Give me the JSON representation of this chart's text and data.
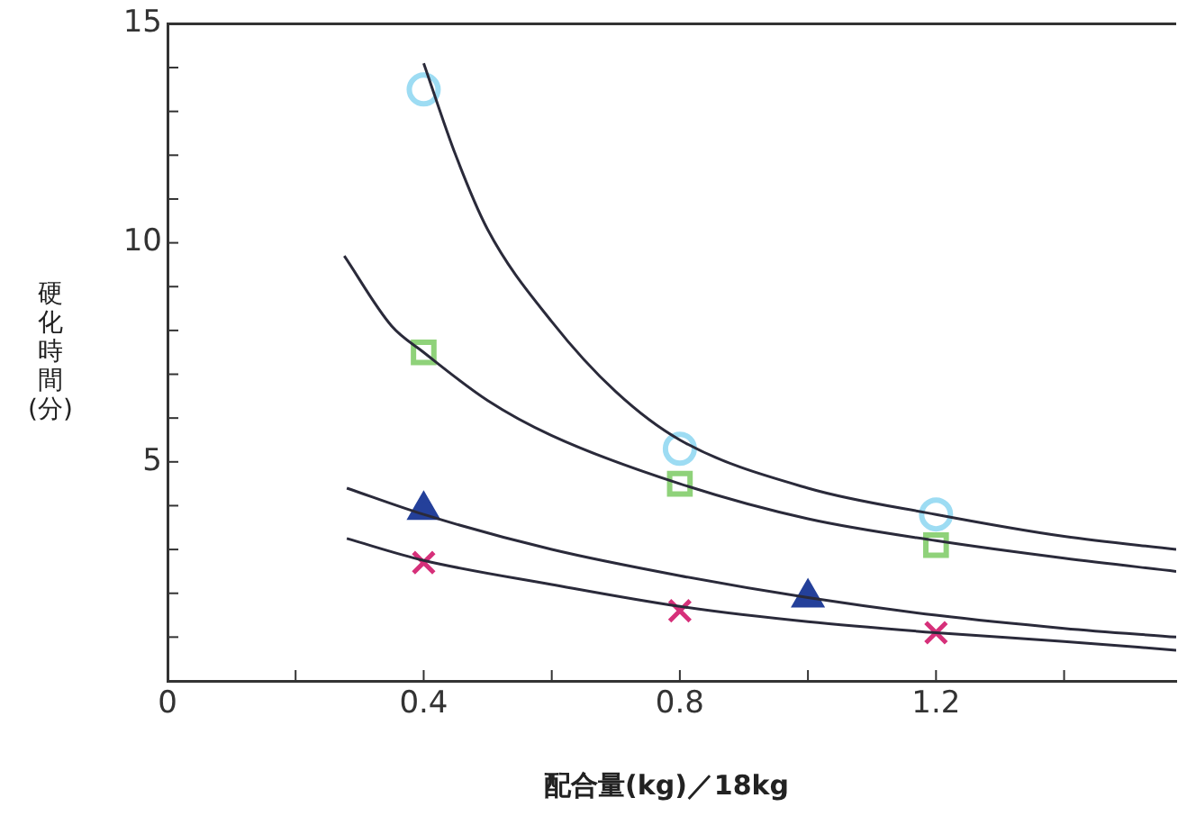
{
  "chart_data": {
    "type": "scatter",
    "xlabel": "配合量(kg)／18kg",
    "ylabel": "硬化時間(分)",
    "xlim": [
      0,
      1.575
    ],
    "ylim": [
      0,
      15
    ],
    "xticks": [
      0,
      {
        "value": 0.2,
        "label": null
      },
      0.4,
      {
        "value": 0.6,
        "label": null
      },
      0.8,
      {
        "value": 1.0,
        "label": null
      },
      1.2,
      {
        "value": 1.4,
        "label": null
      }
    ],
    "yticks": [
      {
        "value": 1,
        "label": null
      },
      {
        "value": 2,
        "label": null
      },
      {
        "value": 3,
        "label": null
      },
      {
        "value": 4,
        "label": null
      },
      5,
      {
        "value": 6,
        "label": null
      },
      {
        "value": 7,
        "label": null
      },
      {
        "value": 8,
        "label": null
      },
      {
        "value": 9,
        "label": null
      },
      10,
      {
        "value": 11,
        "label": null
      },
      {
        "value": 12,
        "label": null
      },
      {
        "value": 13,
        "label": null
      },
      {
        "value": 14,
        "label": null
      },
      15
    ],
    "legend": false,
    "series": [
      {
        "type": "line",
        "color": "#2a2a3a",
        "marker": "none",
        "x": [
          0.4,
          0.45,
          0.5,
          0.6,
          0.7,
          0.8,
          1.0,
          1.2,
          1.4,
          1.575
        ],
        "values": [
          14.1,
          12.0,
          10.3,
          8.2,
          6.6,
          5.5,
          4.4,
          3.8,
          3.3,
          3.0
        ]
      },
      {
        "type": "line",
        "color": "#2a2a3a",
        "marker": "none",
        "x": [
          0.276,
          0.35,
          0.4,
          0.5,
          0.6,
          0.8,
          1.0,
          1.2,
          1.4,
          1.575
        ],
        "values": [
          9.7,
          8.1,
          7.5,
          6.4,
          5.6,
          4.5,
          3.7,
          3.2,
          2.8,
          2.5
        ]
      },
      {
        "type": "line",
        "color": "#2a2a3a",
        "marker": "none",
        "x": [
          0.28,
          0.4,
          0.6,
          0.8,
          1.0,
          1.2,
          1.4,
          1.575
        ],
        "values": [
          4.4,
          3.8,
          3.0,
          2.4,
          1.9,
          1.5,
          1.2,
          1.0
        ]
      },
      {
        "type": "line",
        "color": "#2a2a3a",
        "marker": "none",
        "x": [
          0.28,
          0.4,
          0.6,
          0.8,
          1.0,
          1.2,
          1.4,
          1.575
        ],
        "values": [
          3.25,
          2.75,
          2.2,
          1.7,
          1.35,
          1.1,
          0.9,
          0.7
        ]
      },
      {
        "type": "scatter",
        "color": "#9ddcf3",
        "marker": "circle",
        "x": [
          0.4,
          0.8,
          1.2
        ],
        "values": [
          13.5,
          5.3,
          3.8
        ]
      },
      {
        "type": "scatter",
        "color": "#8fd27a",
        "marker": "square",
        "x": [
          0.4,
          0.8,
          1.2
        ],
        "values": [
          7.5,
          4.5,
          3.1
        ]
      },
      {
        "type": "scatter",
        "color": "#24409a",
        "marker": "triangle",
        "x": [
          0.4,
          1.0
        ],
        "values": [
          3.9,
          1.9
        ]
      },
      {
        "type": "scatter",
        "color": "#d6307a",
        "marker": "cross",
        "x": [
          0.4,
          0.8,
          1.2
        ],
        "values": [
          2.7,
          1.6,
          1.1
        ]
      }
    ]
  }
}
